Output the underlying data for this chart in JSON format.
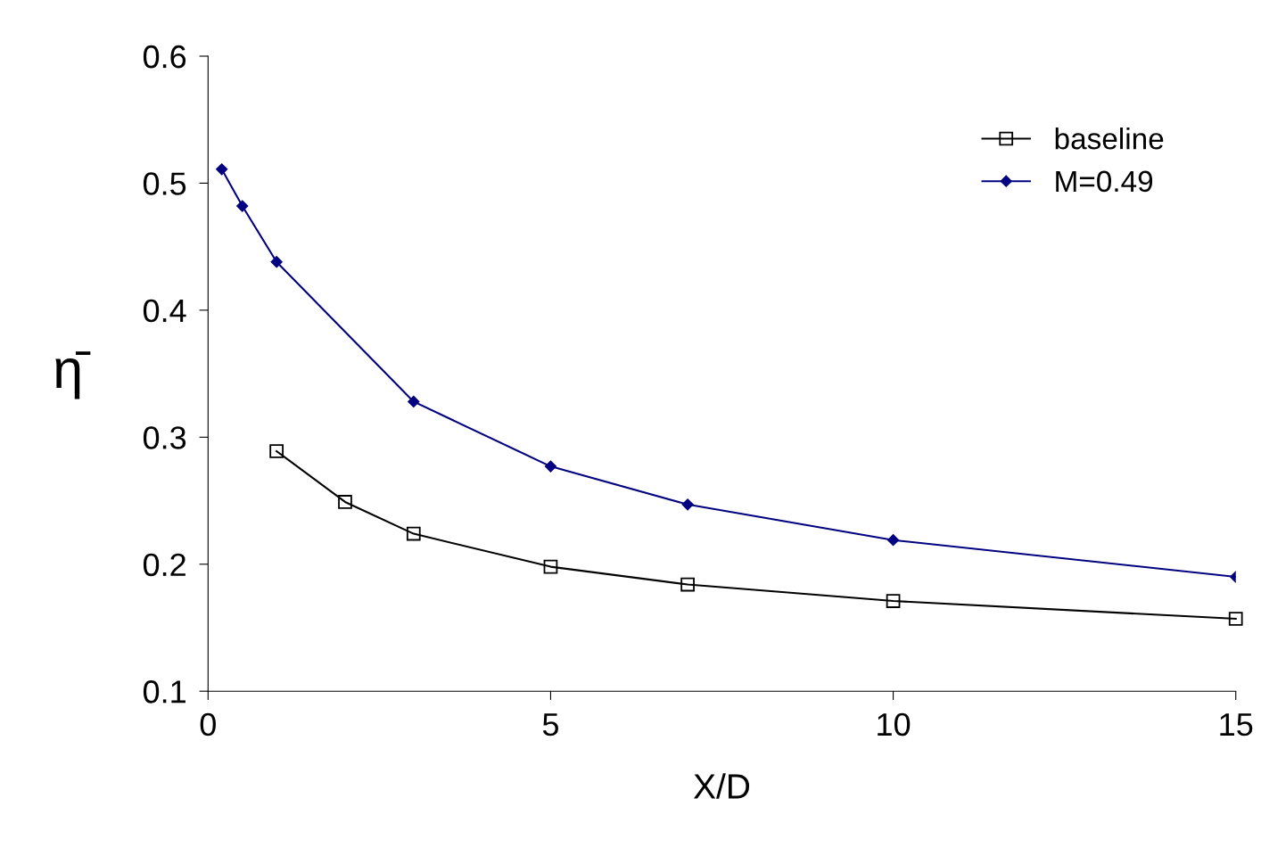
{
  "chart_data": {
    "type": "line",
    "xlabel": "X/D",
    "ylabel": "η̄",
    "xlim": [
      0,
      15
    ],
    "ylim": [
      0.1,
      0.6
    ],
    "xticks": [
      0,
      5,
      10,
      15
    ],
    "yticks": [
      0.1,
      0.2,
      0.3,
      0.4,
      0.5,
      0.6
    ],
    "grid": false,
    "legend": "top right",
    "series": [
      {
        "name": "baseline",
        "color": "#000000",
        "marker": "square",
        "x": [
          1,
          2,
          3,
          5,
          7,
          10,
          15
        ],
        "values": [
          0.289,
          0.249,
          0.224,
          0.198,
          0.184,
          0.171,
          0.157
        ]
      },
      {
        "name": "M=0.49",
        "color": "#000080",
        "marker": "diamond",
        "x": [
          0.2,
          0.5,
          1,
          3,
          5,
          7,
          10,
          15
        ],
        "values": [
          0.511,
          0.482,
          0.438,
          0.328,
          0.277,
          0.247,
          0.219,
          0.19
        ]
      }
    ]
  }
}
